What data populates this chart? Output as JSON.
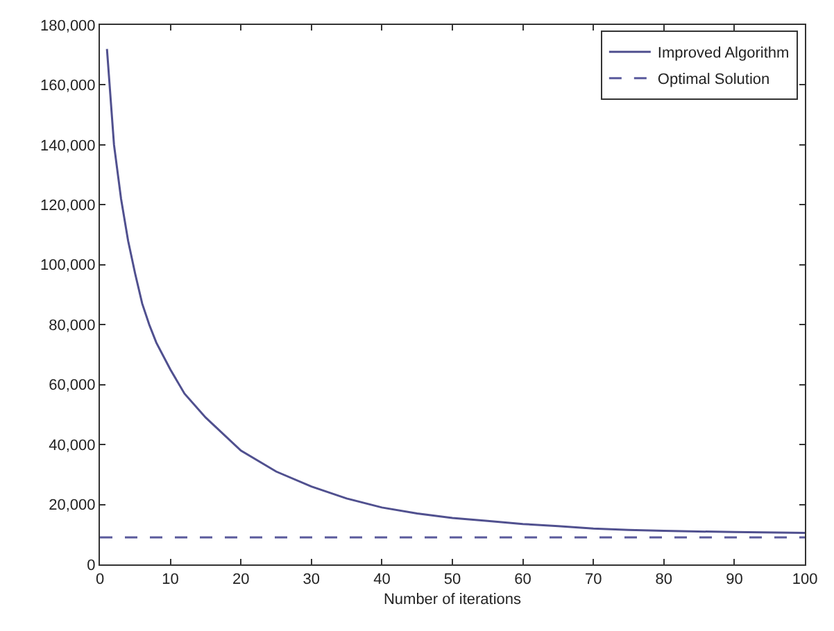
{
  "chart_data": {
    "type": "line",
    "xlabel": "Number of iterations",
    "xlim": [
      0,
      100
    ],
    "xticks": [
      0,
      10,
      20,
      30,
      40,
      50,
      60,
      70,
      80,
      90,
      100
    ],
    "ylim": [
      0,
      180000
    ],
    "yticks": [
      {
        "value": 0,
        "label": "0"
      },
      {
        "value": 20000,
        "label": "20,000"
      },
      {
        "value": 40000,
        "label": "40,000"
      },
      {
        "value": 60000,
        "label": "60,000"
      },
      {
        "value": 80000,
        "label": "80,000"
      },
      {
        "value": 100000,
        "label": "100,000"
      },
      {
        "value": 120000,
        "label": "120,000"
      },
      {
        "value": 140000,
        "label": "140,000"
      },
      {
        "value": 160000,
        "label": "160,000"
      },
      {
        "value": 180000,
        "label": "180,000"
      }
    ],
    "grid": false,
    "legend": "top right",
    "marker": "none",
    "series": [
      {
        "name": "Improved Algorithm",
        "color": "#50508f",
        "line_style": "solid",
        "x": [
          1,
          2,
          3,
          4,
          5,
          6,
          7,
          8,
          10,
          12,
          15,
          20,
          25,
          30,
          35,
          40,
          45,
          50,
          55,
          60,
          65,
          70,
          75,
          80,
          90,
          100
        ],
        "values": [
          172000,
          140000,
          122000,
          108000,
          97000,
          87000,
          80000,
          74000,
          65000,
          57000,
          49000,
          38000,
          31000,
          26000,
          22000,
          19000,
          17000,
          15500,
          14500,
          13500,
          12800,
          12000,
          11500,
          11200,
          10800,
          10500
        ]
      },
      {
        "name": "Optimal Solution",
        "color": "#5a5a9c",
        "line_style": "dashed",
        "x": [
          0,
          100
        ],
        "values": [
          9000,
          9000
        ]
      }
    ]
  }
}
